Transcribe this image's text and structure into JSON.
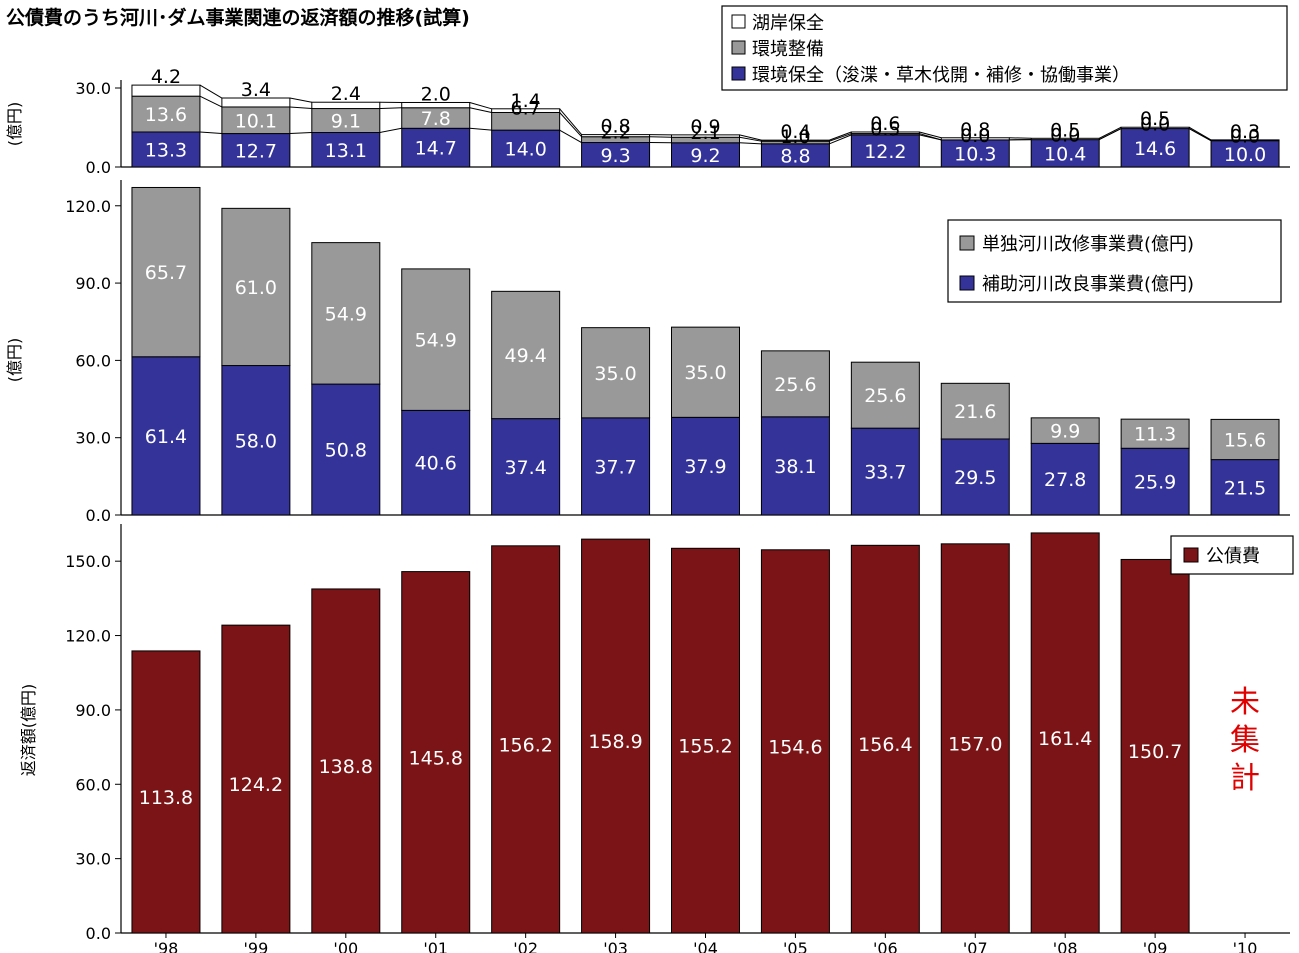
{
  "title": "公債費のうち河川･ダム事業関連の返済額の推移(試算)",
  "chart_data": [
    {
      "type": "bar",
      "stacked": true,
      "panel": "top",
      "categories": [
        "'98",
        "'99",
        "'00",
        "'01",
        "'02",
        "'03",
        "'04",
        "'05",
        "'06",
        "'07",
        "'08",
        "'09",
        "'10"
      ],
      "ylabel": "(億円)",
      "ylim": [
        0,
        30
      ],
      "yticks": [
        "0.0",
        "30.0"
      ],
      "legend_position": "top-right",
      "series": [
        {
          "name": "環境保全（浚渫・草木伐開・補修・協働事業）",
          "color": "#333399",
          "values": [
            13.3,
            12.7,
            13.1,
            14.7,
            14.0,
            9.3,
            9.2,
            8.8,
            12.2,
            10.3,
            10.4,
            14.6,
            10.0
          ]
        },
        {
          "name": "環境整備",
          "color": "#999999",
          "values": [
            13.6,
            10.1,
            9.1,
            7.8,
            6.7,
            2.2,
            2.1,
            1.0,
            0.5,
            0.0,
            0.0,
            0.0,
            0.0
          ]
        },
        {
          "name": "湖岸保全",
          "color": "#ffffff",
          "values": [
            4.2,
            3.4,
            2.4,
            2.0,
            1.4,
            0.8,
            0.9,
            0.4,
            0.6,
            0.8,
            0.5,
            0.5,
            0.3
          ]
        }
      ]
    },
    {
      "type": "bar",
      "stacked": true,
      "panel": "middle",
      "categories": [
        "'98",
        "'99",
        "'00",
        "'01",
        "'02",
        "'03",
        "'04",
        "'05",
        "'06",
        "'07",
        "'08",
        "'09",
        "'10"
      ],
      "ylabel": "(億円)",
      "ylim": [
        0,
        130
      ],
      "yticks": [
        "0.0",
        "30.0",
        "60.0",
        "90.0",
        "120.0"
      ],
      "legend_position": "right",
      "series": [
        {
          "name": "補助河川改良事業費(億円)",
          "color": "#333399",
          "values": [
            61.4,
            58.0,
            50.8,
            40.6,
            37.4,
            37.7,
            37.9,
            38.1,
            33.7,
            29.5,
            27.8,
            25.9,
            21.5
          ]
        },
        {
          "name": "単独河川改修事業費(億円)",
          "color": "#999999",
          "values": [
            65.7,
            61.0,
            54.9,
            54.9,
            49.4,
            35.0,
            35.0,
            25.6,
            25.6,
            21.6,
            9.9,
            11.3,
            15.6
          ]
        }
      ]
    },
    {
      "type": "bar",
      "stacked": false,
      "panel": "bottom",
      "categories": [
        "'98",
        "'99",
        "'00",
        "'01",
        "'02",
        "'03",
        "'04",
        "'05",
        "'06",
        "'07",
        "'08",
        "'09",
        "'10"
      ],
      "ylabel": "返済額(億円)",
      "ylim": [
        0,
        165
      ],
      "yticks": [
        "0.0",
        "30.0",
        "60.0",
        "90.0",
        "120.0",
        "150.0"
      ],
      "legend_position": "top-right",
      "series": [
        {
          "name": "公債費",
          "color": "#7b1416",
          "values": [
            113.8,
            124.2,
            138.8,
            145.8,
            156.2,
            158.9,
            155.2,
            154.6,
            156.4,
            157.0,
            161.4,
            150.7,
            null
          ]
        }
      ],
      "annotation": "未集計"
    }
  ]
}
